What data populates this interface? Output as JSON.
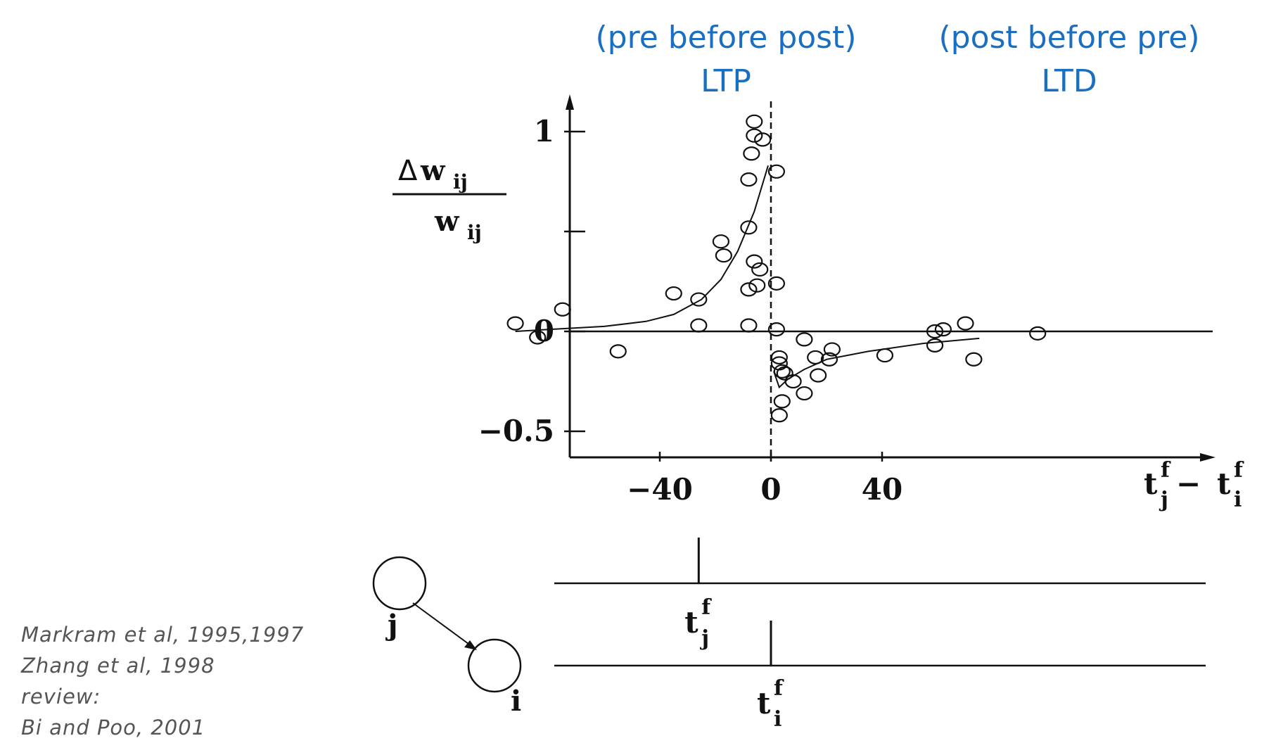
{
  "headers": {
    "left_line1": "(pre before post)",
    "left_line2": "LTP",
    "right_line1": "(post before pre)",
    "right_line2": "LTD"
  },
  "citation": [
    "Markram et al, 1995,1997",
    "Zhang et al, 1998",
    "review:",
    "Bi and Poo, 2001"
  ],
  "chart_data": {
    "type": "scatter",
    "title": "",
    "xlabel": {
      "main": "t",
      "sup1": "f",
      "sub1": "j",
      "sep": " − ",
      "main2": "t",
      "sup2": "f",
      "sub2": "i"
    },
    "ylabel": {
      "num_symbol": "Δ",
      "num_main": "w",
      "num_sub": "ij",
      "den_main": "w",
      "den_sub": "ij"
    },
    "xlim": [
      -102,
      100
    ],
    "ylim": [
      -0.65,
      1.12
    ],
    "xticks": [
      -40,
      0,
      40
    ],
    "xtick_labels": [
      "−40",
      "0",
      "40"
    ],
    "yticks": [
      1,
      0.5,
      0,
      -0.5
    ],
    "ytick_labels": [
      "1",
      "",
      "0",
      "−0.5"
    ],
    "reference_line_x": 0,
    "series": [
      {
        "values": [
          [
            -92,
            0.04
          ],
          [
            -84,
            -0.03
          ],
          [
            -75,
            0.11
          ],
          [
            -55,
            -0.1
          ],
          [
            -35,
            0.19
          ],
          [
            -26,
            0.03
          ],
          [
            -26,
            0.16
          ],
          [
            -18,
            0.45
          ],
          [
            -17,
            0.38
          ],
          [
            -8,
            0.76
          ],
          [
            -8,
            0.52
          ],
          [
            -8,
            0.03
          ],
          [
            -8,
            0.21
          ],
          [
            -7,
            0.89
          ],
          [
            -6,
            0.35
          ],
          [
            -6,
            0.98
          ],
          [
            -6,
            1.05
          ],
          [
            -5,
            0.23
          ],
          [
            -4,
            0.31
          ],
          [
            -3,
            0.96
          ],
          [
            2,
            0.8
          ],
          [
            2,
            0.24
          ],
          [
            2,
            0.01
          ],
          [
            3,
            -0.13
          ],
          [
            3,
            -0.16
          ],
          [
            3,
            -0.42
          ],
          [
            4,
            -0.2
          ],
          [
            4,
            -0.35
          ],
          [
            5,
            -0.21
          ],
          [
            8,
            -0.25
          ],
          [
            12,
            -0.04
          ],
          [
            12,
            -0.31
          ],
          [
            16,
            -0.13
          ],
          [
            17,
            -0.22
          ],
          [
            21,
            -0.14
          ],
          [
            22,
            -0.09
          ],
          [
            41,
            -0.12
          ],
          [
            59,
            0.0
          ],
          [
            59,
            -0.07
          ],
          [
            62,
            0.01
          ],
          [
            70,
            0.04
          ],
          [
            73,
            -0.14
          ],
          [
            96,
            -0.01
          ]
        ]
      }
    ],
    "fit_curve": {
      "ltp": [
        [
          -92,
          0.0
        ],
        [
          -80,
          0.01
        ],
        [
          -60,
          0.025
        ],
        [
          -45,
          0.05
        ],
        [
          -35,
          0.085
        ],
        [
          -25,
          0.16
        ],
        [
          -18,
          0.26
        ],
        [
          -12,
          0.4
        ],
        [
          -6,
          0.6
        ],
        [
          -1,
          0.83
        ]
      ],
      "ltd": [
        [
          1,
          -0.2
        ],
        [
          3,
          -0.28
        ],
        [
          6,
          -0.24
        ],
        [
          12,
          -0.19
        ],
        [
          20,
          -0.14
        ],
        [
          35,
          -0.1
        ],
        [
          55,
          -0.06
        ],
        [
          75,
          -0.035
        ]
      ]
    },
    "right_baseline_x": [
      62,
      98
    ],
    "spike_diagram": {
      "pre_neuron": "j",
      "post_neuron": "i",
      "pre_spike_label": {
        "main": "t",
        "sup": "f",
        "sub": "j"
      },
      "post_spike_label": {
        "main": "t",
        "sup": "f",
        "sub": "i"
      },
      "pre_spike_time": -26,
      "post_spike_time": 0
    }
  }
}
